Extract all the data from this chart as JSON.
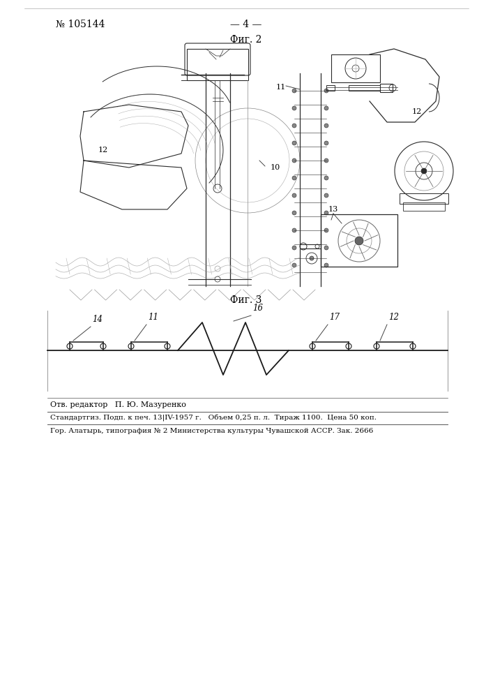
{
  "bg_color": "#ffffff",
  "header_patent_num": "№ 105144",
  "header_page": "— 4 —",
  "fig2_label": "Фиг. 2",
  "fig3_label": "Фиг. 3",
  "footer_line1": "Отв. редактор   П. Ю. Мазуренко",
  "footer_line2": "Стандартгиз. Подп. к печ. 13|IV-1957 г.   Объем 0,25 п. л.  Тираж 1100.  Цена 50 коп.",
  "footer_line3": "Гор. Алатырь, типография № 2 Министерства культуры Чувашской АССР. Зак. 2666",
  "labels_fig2": [
    "10",
    "11",
    "12",
    "13"
  ],
  "labels_fig3": [
    "14",
    "11",
    "16",
    "17",
    "12"
  ],
  "text_color": "#000000",
  "line_color": "#1a1a1a",
  "lw_main": 0.8,
  "lw_thin": 0.5,
  "lw_thick": 1.2
}
